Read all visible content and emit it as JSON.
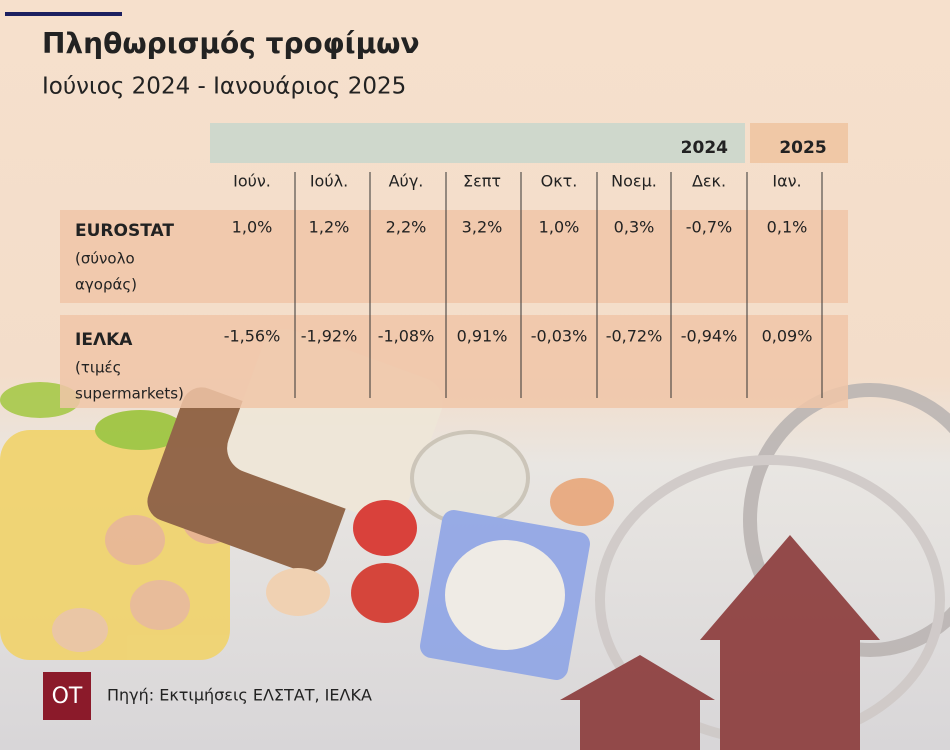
{
  "header": {
    "title": "Πληθωρισμός τροφίμων",
    "subtitle": "Ιούνιος 2024 - Ιανουάριος 2025"
  },
  "table": {
    "years": [
      "2024",
      "2025"
    ],
    "columns": [
      "Ιούν.",
      "Ιούλ.",
      "Αύγ.",
      "Σεπτ",
      "Οκτ.",
      "Νοεμ.",
      "Δεκ.",
      "Ιαν."
    ],
    "rows": [
      {
        "label": "EUROSTAT",
        "note": [
          "(σύνολο",
          "αγοράς)"
        ],
        "values": [
          "1,0%",
          "1,2%",
          "2,2%",
          "3,2%",
          "1,0%",
          "0,3%",
          "-0,7%",
          "0,1%"
        ]
      },
      {
        "label": "ΙΕΛΚΑ",
        "note": [
          "(τιμές",
          "supermarkets)"
        ],
        "values": [
          "-1,56%",
          "-1,92%",
          "-1,08%",
          "0,91%",
          "-0,03%",
          "-0,72%",
          "-0,94%",
          "0,09%"
        ]
      }
    ]
  },
  "footer": {
    "logo": "OT",
    "source": "Πηγή: Εκτιμήσεις ΕΛΣΤΑΤ, ΙΕΛΚΑ"
  }
}
